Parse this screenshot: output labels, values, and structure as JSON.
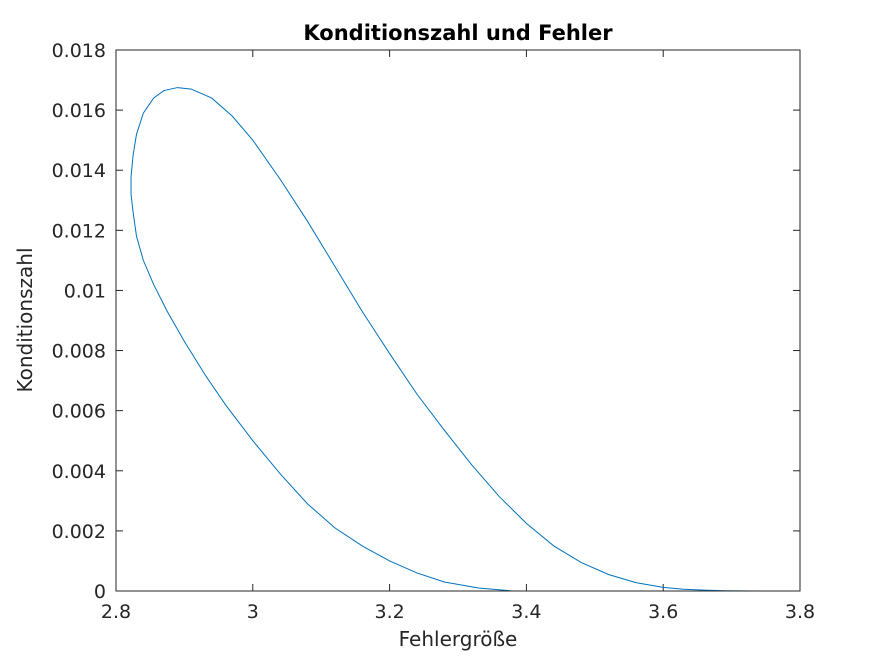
{
  "chart_data": {
    "type": "line",
    "title": "Konditionszahl und Fehler",
    "xlabel": "Fehlergröße",
    "ylabel": "Konditionszahl",
    "xlim": [
      2.8,
      3.8
    ],
    "ylim": [
      0,
      0.018
    ],
    "xticks": [
      "2.8",
      "3",
      "3.2",
      "3.4",
      "3.6",
      "3.8"
    ],
    "yticks": [
      "0",
      "0.002",
      "0.004",
      "0.006",
      "0.008",
      "0.01",
      "0.012",
      "0.014",
      "0.016",
      "0.018"
    ],
    "grid": false,
    "line_color": "#0072BD",
    "series": [
      {
        "x": [
          3.38,
          3.33,
          3.28,
          3.24,
          3.2,
          3.16,
          3.12,
          3.08,
          3.04,
          3.0,
          2.96,
          2.93,
          2.9,
          2.875,
          2.855,
          2.84,
          2.83,
          2.825,
          2.822,
          2.822,
          2.825,
          2.83,
          2.84,
          2.855,
          2.87,
          2.89,
          2.91,
          2.94,
          2.97,
          3.0,
          3.04,
          3.08,
          3.12,
          3.16,
          3.2,
          3.24,
          3.28,
          3.32,
          3.36,
          3.4,
          3.44,
          3.48,
          3.52,
          3.56,
          3.6,
          3.63,
          3.66,
          3.69,
          3.735
        ],
        "y": [
          0.0,
          0.0001,
          0.0003,
          0.0006,
          0.001,
          0.0015,
          0.0021,
          0.0029,
          0.0039,
          0.005,
          0.0062,
          0.0072,
          0.0083,
          0.0093,
          0.0102,
          0.011,
          0.0118,
          0.0126,
          0.0132,
          0.0138,
          0.0145,
          0.0152,
          0.0159,
          0.0164,
          0.01665,
          0.01675,
          0.0167,
          0.0164,
          0.0158,
          0.015,
          0.0137,
          0.0123,
          0.0108,
          0.0093,
          0.0079,
          0.00655,
          0.00535,
          0.0042,
          0.00315,
          0.00225,
          0.0015,
          0.00095,
          0.00055,
          0.00028,
          0.00012,
          6e-05,
          3e-05,
          1e-05,
          0.0
        ]
      }
    ]
  }
}
